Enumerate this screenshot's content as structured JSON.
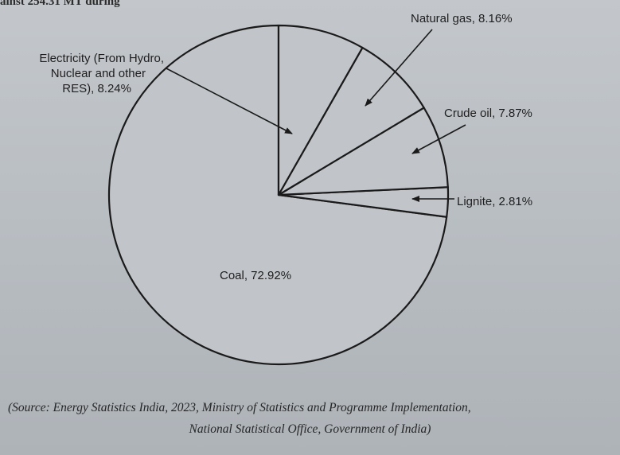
{
  "page": {
    "top_fragment": "ainst 254.31 MT during",
    "source_line_1": "(Source: Energy Statistics India, 2023, Ministry of Statistics and Programme Implementation,",
    "source_line_2": "National Statistical Office, Government of India)"
  },
  "chart_data": {
    "type": "pie",
    "title": "",
    "slices": [
      {
        "label": "Coal",
        "value": 72.92,
        "display": "Coal, 72.92%"
      },
      {
        "label": "Lignite",
        "value": 2.81,
        "display": "Lignite, 2.81%"
      },
      {
        "label": "Crude oil",
        "value": 7.87,
        "display": "Crude oil, 7.87%"
      },
      {
        "label": "Natural gas",
        "value": 8.16,
        "display": "Natural gas, 8.16%"
      },
      {
        "label": "Electricity (From Hydro, Nuclear and other RES)",
        "value": 8.24,
        "display_lines": [
          "Electricity (From Hydro,",
          "Nuclear and other",
          "RES), 8.24%"
        ]
      }
    ],
    "fill_color": "#c1c5c9",
    "line_color": "#1a1a1a"
  }
}
